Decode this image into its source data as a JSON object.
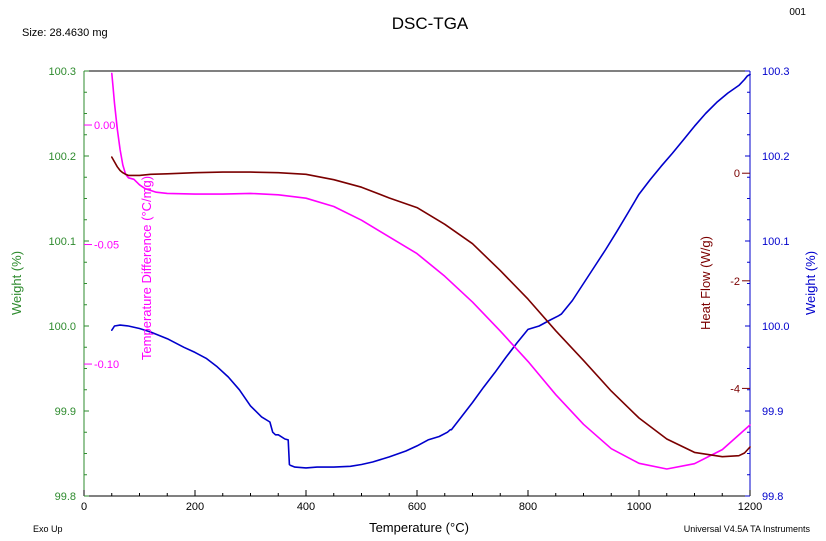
{
  "header": {
    "size_label": "Size:  28.4630 mg",
    "title": "DSC-TGA",
    "run_id": "001"
  },
  "footer": {
    "left_note": "Exo Up",
    "right_note": "Universal V4.5A TA Instruments"
  },
  "colors": {
    "weight_left": "#2e8b2e",
    "temp_diff": "#ff00ff",
    "heat_flow": "#7b0000",
    "weight_right": "#0000cc",
    "axis": "#000000"
  },
  "chart_data": {
    "type": "line",
    "title": "DSC-TGA",
    "xlabel": "Temperature (°C)",
    "xlim": [
      0,
      1200
    ],
    "x_ticks": [
      0,
      200,
      400,
      600,
      800,
      1000,
      1200
    ],
    "axes": {
      "weight_left": {
        "label": "Weight (%)",
        "ylim": [
          99.8,
          100.3
        ],
        "ticks": [
          "99.8",
          "99.9",
          "100.0",
          "100.1",
          "100.2",
          "100.3"
        ],
        "tick_values": [
          99.8,
          99.9,
          100.0,
          100.1,
          100.2,
          100.3
        ]
      },
      "temp_diff": {
        "label": "Temperature Difference (°C/mg)",
        "ylim": [
          -0.1552,
          0.0226
        ],
        "ticks": [
          "0.00",
          "-0.05",
          "-0.10"
        ],
        "tick_values": [
          0.0,
          -0.05,
          -0.1
        ]
      },
      "heat_flow": {
        "label": "Heat Flow (W/g)",
        "ylim": [
          -6.0,
          1.9
        ],
        "ticks": [
          "0",
          "-2",
          "-4"
        ],
        "tick_values": [
          0,
          -2,
          -4
        ]
      },
      "weight_right": {
        "label": "Weight (%)",
        "ylim": [
          99.8,
          100.3
        ],
        "ticks": [
          "99.8",
          "99.9",
          "100.0",
          "100.1",
          "100.2",
          "100.3"
        ],
        "tick_values": [
          99.8,
          99.9,
          100.0,
          100.1,
          100.2,
          100.3
        ]
      }
    },
    "series": [
      {
        "axis": "weight_right",
        "color": "#0000cc",
        "x": [
          50,
          55,
          65,
          80,
          100,
          120,
          150,
          180,
          200,
          220,
          240,
          260,
          280,
          300,
          320,
          335,
          340,
          345,
          350,
          362,
          368,
          370,
          372,
          380,
          400,
          420,
          450,
          480,
          500,
          520,
          550,
          580,
          600,
          620,
          640,
          655,
          660,
          662,
          680,
          700,
          720,
          740,
          760,
          780,
          800,
          820,
          840,
          855,
          860,
          880,
          900,
          920,
          940,
          960,
          980,
          1000,
          1020,
          1040,
          1060,
          1080,
          1100,
          1120,
          1140,
          1160,
          1180,
          1190,
          1195,
          1200
        ],
        "y": [
          99.995,
          100.0,
          100.001,
          100.0,
          99.997,
          99.993,
          99.985,
          99.975,
          99.969,
          99.962,
          99.952,
          99.94,
          99.925,
          99.906,
          99.893,
          99.887,
          99.875,
          99.872,
          99.872,
          99.867,
          99.866,
          99.837,
          99.836,
          99.834,
          99.833,
          99.834,
          99.834,
          99.835,
          99.837,
          99.84,
          99.846,
          99.853,
          99.859,
          99.866,
          99.87,
          99.875,
          99.878,
          99.878,
          99.893,
          99.91,
          99.928,
          99.945,
          99.963,
          99.98,
          99.996,
          100.0,
          100.007,
          100.012,
          100.014,
          100.03,
          100.05,
          100.07,
          100.09,
          100.111,
          100.133,
          100.155,
          100.172,
          100.188,
          100.203,
          100.219,
          100.235,
          100.25,
          100.263,
          100.274,
          100.283,
          100.29,
          100.294,
          100.296
        ]
      },
      {
        "axis": "temp_diff",
        "color": "#ff00ff",
        "x": [
          50,
          52,
          55,
          60,
          65,
          70,
          75,
          80,
          90,
          100,
          110,
          130,
          150,
          200,
          250,
          300,
          350,
          400,
          450,
          500,
          550,
          600,
          650,
          700,
          750,
          800,
          850,
          900,
          950,
          1000,
          1050,
          1100,
          1150,
          1200
        ],
        "y": [
          0.0216,
          0.0166,
          0.0091,
          -0.0017,
          -0.0103,
          -0.0167,
          -0.0206,
          -0.0221,
          -0.0227,
          -0.025,
          -0.0266,
          -0.0281,
          -0.0286,
          -0.0289,
          -0.0289,
          -0.0286,
          -0.0292,
          -0.0306,
          -0.0341,
          -0.0398,
          -0.0468,
          -0.0538,
          -0.0633,
          -0.0741,
          -0.0862,
          -0.0989,
          -0.1128,
          -0.1252,
          -0.1354,
          -0.1415,
          -0.1439,
          -0.1417,
          -0.1358,
          -0.1255
        ]
      },
      {
        "axis": "heat_flow",
        "color": "#7b0000",
        "x": [
          50,
          55,
          60,
          65,
          70,
          75,
          80,
          90,
          100,
          120,
          150,
          200,
          250,
          300,
          350,
          400,
          450,
          500,
          550,
          600,
          650,
          700,
          750,
          800,
          850,
          900,
          950,
          1000,
          1050,
          1100,
          1150,
          1180,
          1190,
          1200
        ],
        "y": [
          0.3,
          0.21,
          0.12,
          0.05,
          0.01,
          -0.02,
          -0.04,
          -0.04,
          -0.04,
          -0.02,
          -0.01,
          0.01,
          0.02,
          0.02,
          0.01,
          -0.02,
          -0.12,
          -0.26,
          -0.46,
          -0.64,
          -0.95,
          -1.31,
          -1.81,
          -2.34,
          -2.93,
          -3.48,
          -4.05,
          -4.55,
          -4.94,
          -5.19,
          -5.27,
          -5.25,
          -5.2,
          -5.09
        ]
      }
    ]
  }
}
